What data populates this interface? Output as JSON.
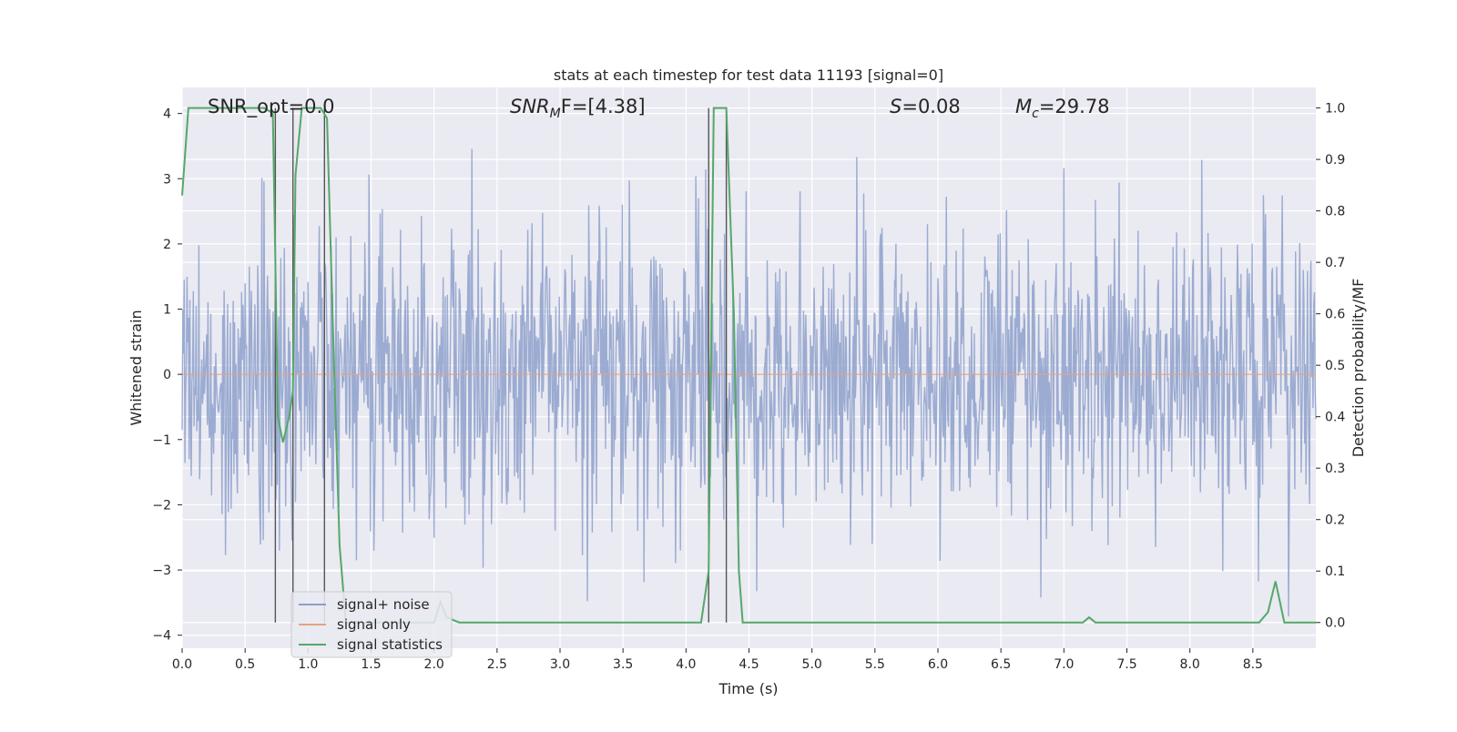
{
  "chart_data": {
    "type": "line",
    "title": "stats at each timestep for test data 11193 [signal=0]",
    "xlabel": "Time (s)",
    "ylabel_left": "Whitened strain",
    "ylabel_right": "Detection probability/MF",
    "xlim": [
      0.0,
      9.0
    ],
    "ylim_left": [
      -4.2,
      4.4
    ],
    "ylim_right": [
      -0.05,
      1.04
    ],
    "x_ticks": [
      0.0,
      0.5,
      1.0,
      1.5,
      2.0,
      2.5,
      3.0,
      3.5,
      4.0,
      4.5,
      5.0,
      5.5,
      6.0,
      6.5,
      7.0,
      7.5,
      8.0,
      8.5
    ],
    "x_tick_labels": [
      "0.0",
      "0.5",
      "1.0",
      "1.5",
      "2.0",
      "2.5",
      "3.0",
      "3.5",
      "4.0",
      "4.5",
      "5.0",
      "5.5",
      "6.0",
      "6.5",
      "7.0",
      "7.5",
      "8.0",
      "8.5"
    ],
    "y_left_ticks": [
      4,
      3,
      2,
      1,
      0,
      -1,
      -2,
      -3,
      -4
    ],
    "y_left_tick_labels": [
      "4",
      "3",
      "2",
      "1",
      "0",
      "−1",
      "−2",
      "−3",
      "−4"
    ],
    "y_right_ticks": [
      1.0,
      0.9,
      0.8,
      0.7,
      0.6,
      0.5,
      0.4,
      0.3,
      0.2,
      0.1,
      0.0
    ],
    "y_right_tick_labels": [
      "1.0",
      "0.9",
      "0.8",
      "0.7",
      "0.6",
      "0.5",
      "0.4",
      "0.3",
      "0.2",
      "0.1",
      "0.0"
    ],
    "grid": true,
    "annotations": {
      "snr_opt": "SNR_opt=0.0",
      "snr_mf_main": "SNR",
      "snr_mf_sub": "M",
      "snr_mf_rest": "F=[4.38]",
      "s_main": "S",
      "s_rest": "=0.08",
      "mc_main": "M",
      "mc_sub": "c",
      "mc_rest": "=29.78"
    },
    "legend": {
      "position": "lower-left",
      "entries": [
        {
          "label": "signal+ noise",
          "color": "#8da0cb"
        },
        {
          "label": "signal only",
          "color": "#e5a27f"
        },
        {
          "label": "signal statistics",
          "color": "#55a868"
        }
      ]
    },
    "series": [
      {
        "name": "signal+ noise",
        "axis": "left",
        "color": "#8da0cb",
        "kind": "noise",
        "samples_per_second": 180,
        "seed": 11193,
        "amplitude": 1.15,
        "clip": [
          -4.0,
          4.0
        ]
      },
      {
        "name": "signal only",
        "axis": "left",
        "color": "#e5a27f",
        "x": [
          0.0,
          9.0
        ],
        "y": [
          0.0,
          0.0
        ]
      },
      {
        "name": "signal statistics",
        "axis": "right",
        "color": "#55a868",
        "x": [
          0.0,
          0.05,
          0.1,
          0.2,
          0.5,
          0.65,
          0.72,
          0.74,
          0.76,
          0.8,
          0.85,
          0.88,
          0.9,
          0.95,
          1.0,
          1.1,
          1.15,
          1.2,
          1.25,
          1.3,
          1.5,
          1.8,
          2.0,
          2.05,
          2.1,
          2.2,
          2.5,
          3.0,
          3.5,
          4.0,
          4.12,
          4.18,
          4.22,
          4.27,
          4.32,
          4.38,
          4.42,
          4.45,
          5.0,
          5.5,
          6.0,
          6.5,
          7.0,
          7.15,
          7.2,
          7.25,
          7.5,
          8.0,
          8.55,
          8.62,
          8.68,
          8.75,
          9.0
        ],
        "y": [
          0.83,
          1.0,
          1.0,
          1.0,
          1.0,
          1.0,
          0.99,
          0.7,
          0.4,
          0.35,
          0.4,
          0.45,
          0.87,
          1.0,
          1.0,
          1.0,
          0.98,
          0.55,
          0.15,
          0.0,
          0.0,
          0.0,
          0.0,
          0.04,
          0.01,
          0.0,
          0.0,
          0.0,
          0.0,
          0.0,
          0.0,
          0.1,
          1.0,
          1.0,
          1.0,
          0.6,
          0.1,
          0.0,
          0.0,
          0.0,
          0.0,
          0.0,
          0.0,
          0.0,
          0.01,
          0.0,
          0.0,
          0.0,
          0.0,
          0.02,
          0.08,
          0.0,
          0.0
        ]
      }
    ],
    "vertical_markers": [
      0.74,
      0.88,
      1.13,
      4.18,
      4.32
    ]
  }
}
